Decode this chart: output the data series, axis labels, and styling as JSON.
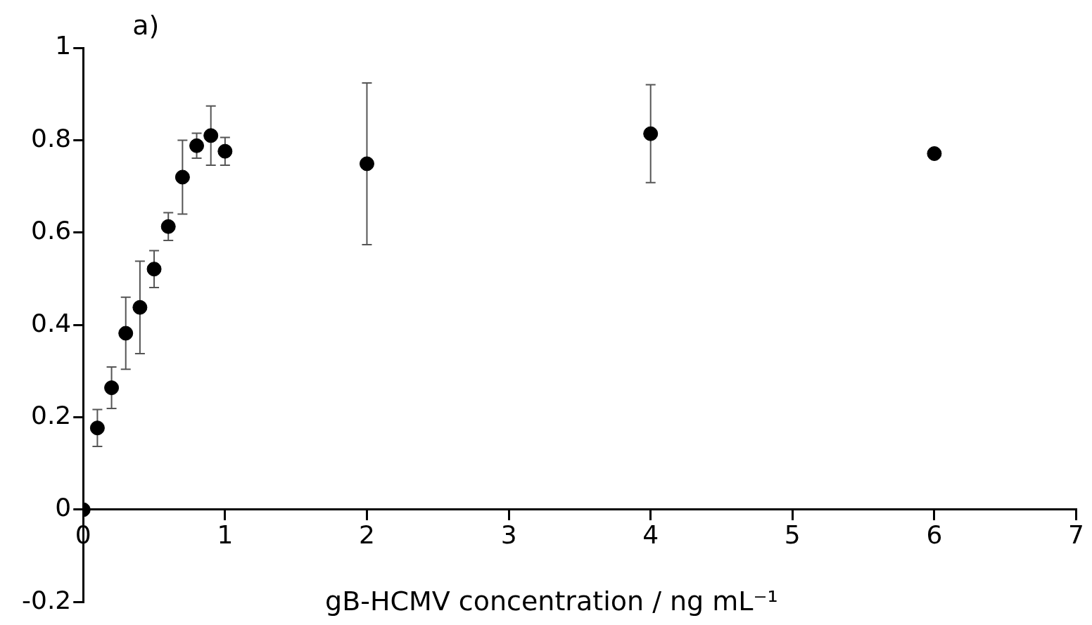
{
  "chart_data": {
    "type": "scatter",
    "xlabel": "gB-HCMV concentration / ng mL⁻¹",
    "annotations": [
      "a)"
    ],
    "x": [
      0,
      0.1,
      0.2,
      0.3,
      0.4,
      0.5,
      0.6,
      0.7,
      0.8,
      0.9,
      1,
      2,
      4,
      6
    ],
    "series": [
      {
        "color": "#000000",
        "values": [
          0,
          0.177,
          0.264,
          0.382,
          0.438,
          0.521,
          0.613,
          0.72,
          0.788,
          0.81,
          0.776,
          0.749,
          0.814,
          0.771
        ],
        "errors": [
          null,
          0.04,
          0.045,
          0.078,
          0.1,
          0.04,
          0.03,
          0.08,
          0.027,
          0.064,
          0.03,
          0.175,
          0.106,
          0.01
        ]
      }
    ],
    "xlim": [
      0,
      7
    ],
    "xticks": [
      0,
      1,
      2,
      3,
      4,
      5,
      6,
      7
    ],
    "ylim": [
      -0.2,
      1
    ],
    "yticks": [
      -0.2,
      0,
      0.2,
      0.4,
      0.6,
      0.8,
      1
    ],
    "grid": false,
    "legend": false,
    "marker": "circle"
  }
}
